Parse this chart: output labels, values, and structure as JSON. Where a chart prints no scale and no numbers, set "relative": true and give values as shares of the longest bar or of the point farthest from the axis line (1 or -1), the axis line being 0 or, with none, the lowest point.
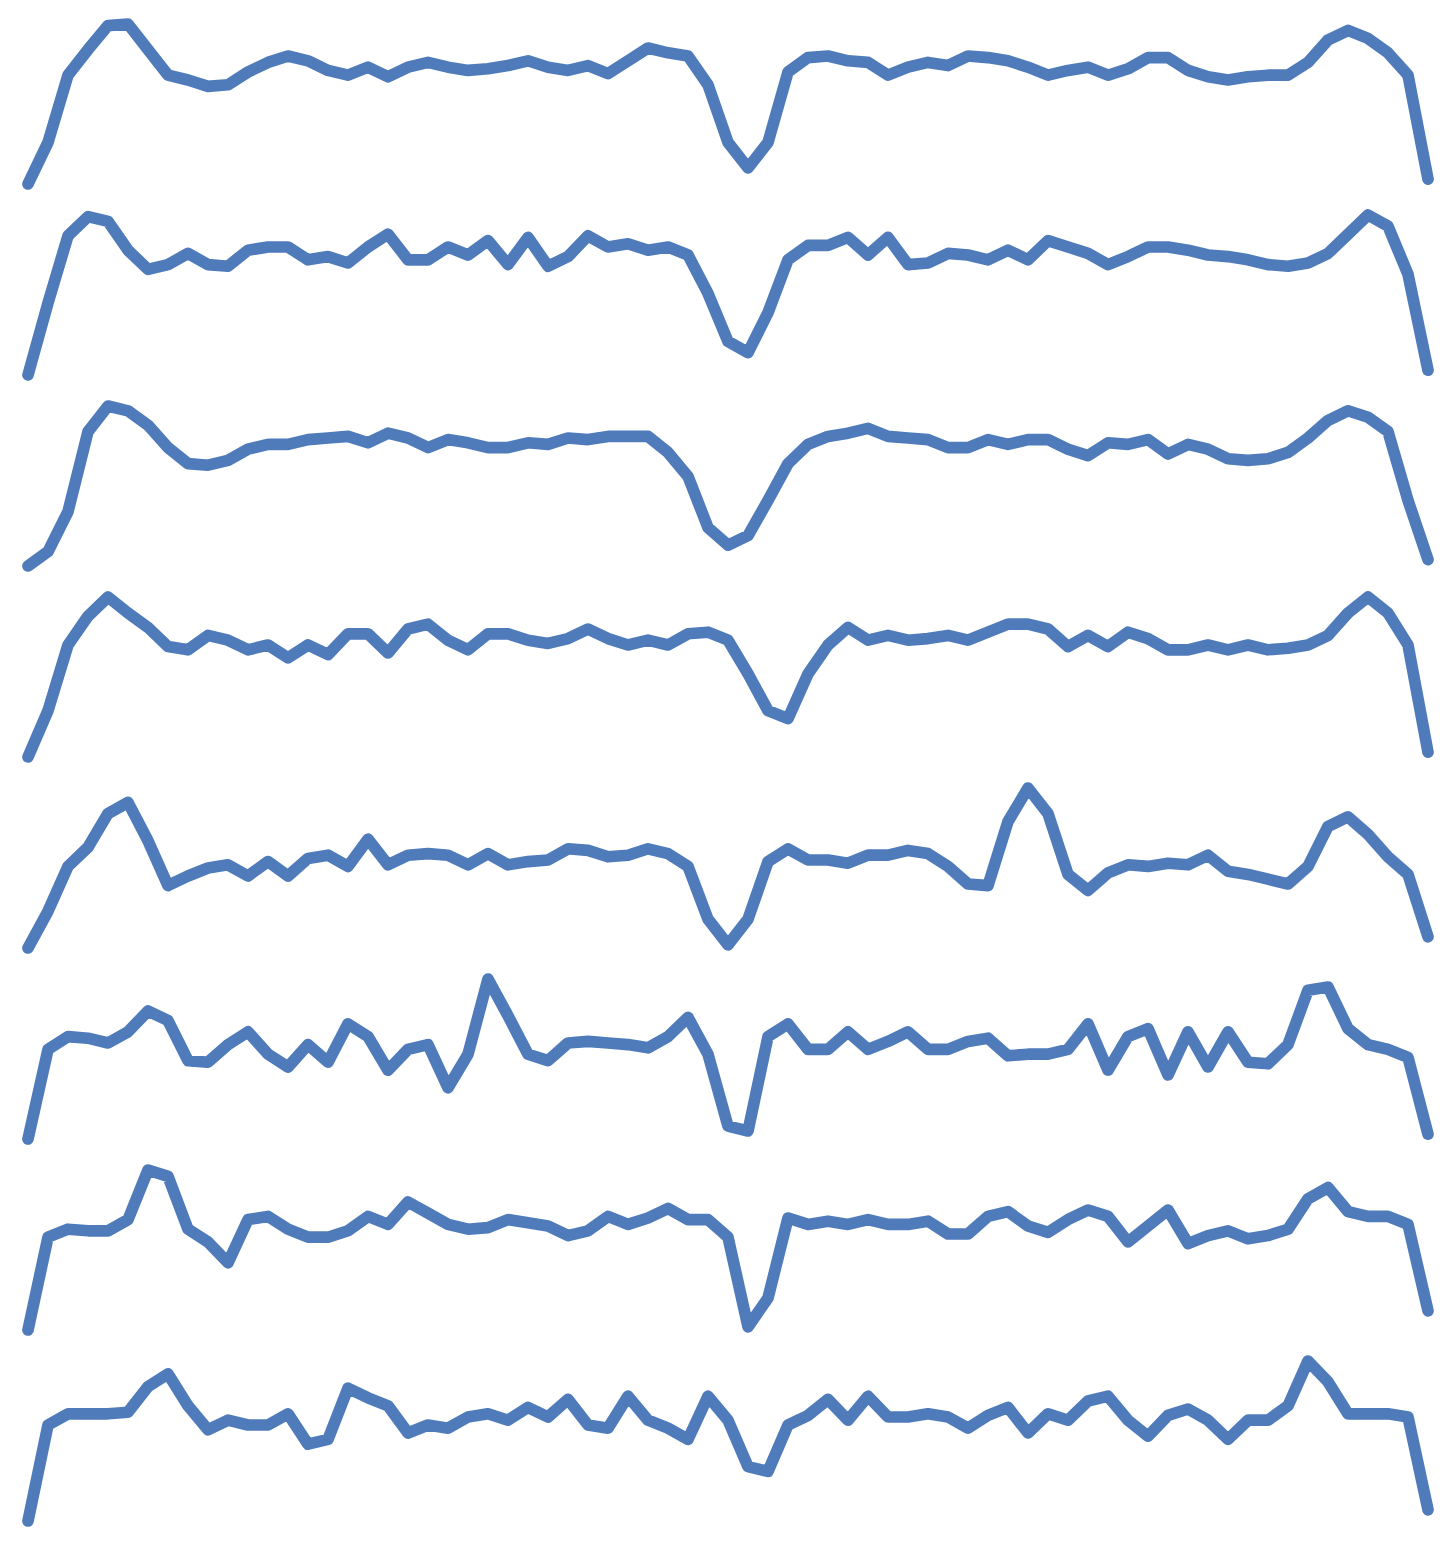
{
  "chart_data": [
    {
      "type": "line",
      "relative": true,
      "categories": [
        null,
        null,
        null,
        null,
        null,
        null,
        null,
        null,
        null,
        null,
        null,
        null,
        null,
        null,
        null,
        null,
        null,
        null,
        null,
        null,
        null,
        null,
        null,
        null,
        null,
        null,
        null,
        null,
        null,
        null,
        null,
        null,
        null,
        null,
        null,
        null,
        null,
        null,
        null,
        null,
        null,
        null,
        null,
        null,
        null,
        null,
        null,
        null,
        null,
        null,
        null,
        null,
        null,
        null,
        null,
        null,
        null,
        null,
        null,
        null,
        null,
        null,
        null,
        null,
        null,
        null,
        null,
        null,
        null,
        null,
        null
      ],
      "series": [
        {
          "color": "#4f7bbb",
          "values": [
            0,
            0.26,
            0.68,
            0.84,
            0.99,
            1.0,
            0.84,
            0.68,
            0.65,
            0.61,
            0.62,
            0.7,
            0.76,
            0.8,
            0.77,
            0.71,
            0.68,
            0.73,
            0.67,
            0.73,
            0.76,
            0.73,
            0.71,
            0.72,
            0.74,
            0.77,
            0.73,
            0.71,
            0.74,
            0.69,
            0.77,
            0.85,
            0.82,
            0.8,
            0.62,
            0.26,
            0.1,
            0.26,
            0.7,
            0.79,
            0.8,
            0.77,
            0.76,
            0.68,
            0.73,
            0.76,
            0.74,
            0.8,
            0.79,
            0.77,
            0.73,
            0.68,
            0.71,
            0.73,
            0.68,
            0.72,
            0.79,
            0.79,
            0.71,
            0.67,
            0.65,
            0.67,
            0.68,
            0.68,
            0.76,
            0.9,
            0.96,
            0.91,
            0.82,
            0.68,
            0.03
          ]
        }
      ]
    },
    {
      "type": "line",
      "relative": true,
      "categories": [
        null,
        null,
        null,
        null,
        null,
        null,
        null,
        null,
        null,
        null,
        null,
        null,
        null,
        null,
        null,
        null,
        null,
        null,
        null,
        null,
        null,
        null,
        null,
        null,
        null,
        null,
        null,
        null,
        null,
        null,
        null,
        null,
        null,
        null,
        null,
        null,
        null,
        null,
        null,
        null,
        null,
        null,
        null,
        null,
        null,
        null,
        null,
        null,
        null,
        null,
        null,
        null,
        null,
        null,
        null,
        null,
        null,
        null,
        null,
        null,
        null,
        null,
        null,
        null,
        null,
        null,
        null,
        null,
        null,
        null,
        null
      ],
      "series": [
        {
          "color": "#4f7bbb",
          "values": [
            0,
            0.45,
            0.87,
            0.99,
            0.96,
            0.78,
            0.66,
            0.69,
            0.76,
            0.69,
            0.68,
            0.78,
            0.8,
            0.8,
            0.72,
            0.74,
            0.7,
            0.8,
            0.88,
            0.72,
            0.72,
            0.8,
            0.75,
            0.84,
            0.69,
            0.86,
            0.68,
            0.74,
            0.87,
            0.8,
            0.82,
            0.78,
            0.8,
            0.75,
            0.51,
            0.21,
            0.14,
            0.39,
            0.72,
            0.81,
            0.81,
            0.86,
            0.75,
            0.86,
            0.69,
            0.7,
            0.76,
            0.75,
            0.72,
            0.78,
            0.72,
            0.84,
            0.8,
            0.76,
            0.69,
            0.74,
            0.8,
            0.8,
            0.78,
            0.75,
            0.74,
            0.72,
            0.69,
            0.68,
            0.7,
            0.76,
            0.88,
            1.0,
            0.93,
            0.63,
            0.03
          ]
        }
      ]
    },
    {
      "type": "line",
      "relative": true,
      "categories": [
        null,
        null,
        null,
        null,
        null,
        null,
        null,
        null,
        null,
        null,
        null,
        null,
        null,
        null,
        null,
        null,
        null,
        null,
        null,
        null,
        null,
        null,
        null,
        null,
        null,
        null,
        null,
        null,
        null,
        null,
        null,
        null,
        null,
        null,
        null,
        null,
        null,
        null,
        null,
        null,
        null,
        null,
        null,
        null,
        null,
        null,
        null,
        null,
        null,
        null,
        null,
        null,
        null,
        null,
        null,
        null,
        null,
        null,
        null,
        null,
        null,
        null,
        null,
        null,
        null,
        null,
        null,
        null,
        null,
        null,
        null
      ],
      "series": [
        {
          "color": "#4f7bbb",
          "values": [
            0,
            0.09,
            0.34,
            0.84,
            1.0,
            0.97,
            0.88,
            0.74,
            0.64,
            0.63,
            0.66,
            0.73,
            0.76,
            0.76,
            0.79,
            0.8,
            0.81,
            0.77,
            0.83,
            0.8,
            0.74,
            0.79,
            0.77,
            0.74,
            0.74,
            0.77,
            0.76,
            0.8,
            0.79,
            0.81,
            0.81,
            0.81,
            0.71,
            0.56,
            0.24,
            0.13,
            0.19,
            0.41,
            0.64,
            0.76,
            0.81,
            0.83,
            0.86,
            0.81,
            0.8,
            0.79,
            0.74,
            0.74,
            0.79,
            0.76,
            0.79,
            0.79,
            0.73,
            0.69,
            0.77,
            0.76,
            0.79,
            0.7,
            0.76,
            0.73,
            0.67,
            0.66,
            0.67,
            0.71,
            0.8,
            0.91,
            0.97,
            0.93,
            0.84,
            0.41,
            0.04
          ]
        }
      ]
    },
    {
      "type": "line",
      "relative": true,
      "categories": [
        null,
        null,
        null,
        null,
        null,
        null,
        null,
        null,
        null,
        null,
        null,
        null,
        null,
        null,
        null,
        null,
        null,
        null,
        null,
        null,
        null,
        null,
        null,
        null,
        null,
        null,
        null,
        null,
        null,
        null,
        null,
        null,
        null,
        null,
        null,
        null,
        null,
        null,
        null,
        null,
        null,
        null,
        null,
        null,
        null,
        null,
        null,
        null,
        null,
        null,
        null,
        null,
        null,
        null,
        null,
        null,
        null,
        null,
        null,
        null,
        null,
        null,
        null,
        null,
        null,
        null,
        null,
        null,
        null,
        null,
        null
      ],
      "series": [
        {
          "color": "#4f7bbb",
          "values": [
            0,
            0.29,
            0.7,
            0.88,
            1.0,
            0.9,
            0.81,
            0.69,
            0.67,
            0.76,
            0.73,
            0.67,
            0.7,
            0.62,
            0.7,
            0.64,
            0.77,
            0.77,
            0.65,
            0.8,
            0.83,
            0.73,
            0.67,
            0.77,
            0.77,
            0.73,
            0.71,
            0.74,
            0.8,
            0.74,
            0.7,
            0.73,
            0.7,
            0.77,
            0.78,
            0.73,
            0.52,
            0.29,
            0.24,
            0.52,
            0.7,
            0.81,
            0.73,
            0.76,
            0.73,
            0.74,
            0.76,
            0.73,
            0.78,
            0.83,
            0.83,
            0.8,
            0.69,
            0.76,
            0.69,
            0.78,
            0.74,
            0.67,
            0.67,
            0.7,
            0.67,
            0.7,
            0.67,
            0.68,
            0.7,
            0.76,
            0.9,
            1.0,
            0.9,
            0.7,
            0.03
          ]
        }
      ]
    },
    {
      "type": "line",
      "relative": true,
      "categories": [
        null,
        null,
        null,
        null,
        null,
        null,
        null,
        null,
        null,
        null,
        null,
        null,
        null,
        null,
        null,
        null,
        null,
        null,
        null,
        null,
        null,
        null,
        null,
        null,
        null,
        null,
        null,
        null,
        null,
        null,
        null,
        null,
        null,
        null,
        null,
        null,
        null,
        null,
        null,
        null,
        null,
        null,
        null,
        null,
        null,
        null,
        null,
        null,
        null,
        null,
        null,
        null,
        null,
        null,
        null,
        null,
        null,
        null,
        null,
        null,
        null,
        null,
        null,
        null,
        null,
        null,
        null,
        null,
        null,
        null,
        null
      ],
      "series": [
        {
          "color": "#4f7bbb",
          "values": [
            0,
            0.23,
            0.51,
            0.63,
            0.84,
            0.91,
            0.67,
            0.39,
            0.45,
            0.5,
            0.52,
            0.45,
            0.54,
            0.45,
            0.56,
            0.58,
            0.51,
            0.68,
            0.52,
            0.58,
            0.59,
            0.58,
            0.52,
            0.59,
            0.52,
            0.54,
            0.55,
            0.62,
            0.61,
            0.57,
            0.58,
            0.62,
            0.59,
            0.51,
            0.18,
            0.02,
            0.18,
            0.54,
            0.62,
            0.55,
            0.55,
            0.53,
            0.58,
            0.58,
            0.61,
            0.59,
            0.51,
            0.4,
            0.39,
            0.79,
            1.0,
            0.84,
            0.46,
            0.36,
            0.47,
            0.52,
            0.51,
            0.53,
            0.52,
            0.58,
            0.48,
            0.46,
            0.43,
            0.4,
            0.51,
            0.76,
            0.82,
            0.71,
            0.57,
            0.46,
            0.07
          ]
        }
      ]
    },
    {
      "type": "line",
      "relative": true,
      "categories": [
        null,
        null,
        null,
        null,
        null,
        null,
        null,
        null,
        null,
        null,
        null,
        null,
        null,
        null,
        null,
        null,
        null,
        null,
        null,
        null,
        null,
        null,
        null,
        null,
        null,
        null,
        null,
        null,
        null,
        null,
        null,
        null,
        null,
        null,
        null,
        null,
        null,
        null,
        null,
        null,
        null,
        null,
        null,
        null,
        null,
        null,
        null,
        null,
        null,
        null,
        null,
        null,
        null,
        null,
        null,
        null,
        null,
        null,
        null,
        null,
        null,
        null,
        null,
        null,
        null,
        null,
        null,
        null,
        null,
        null,
        null
      ],
      "series": [
        {
          "color": "#4f7bbb",
          "values": [
            0,
            0.56,
            0.64,
            0.63,
            0.6,
            0.67,
            0.8,
            0.74,
            0.49,
            0.48,
            0.59,
            0.67,
            0.53,
            0.45,
            0.59,
            0.48,
            0.72,
            0.64,
            0.43,
            0.56,
            0.59,
            0.32,
            0.53,
            1.0,
            0.77,
            0.53,
            0.49,
            0.6,
            0.61,
            0.6,
            0.59,
            0.57,
            0.64,
            0.76,
            0.53,
            0.08,
            0.05,
            0.64,
            0.72,
            0.56,
            0.56,
            0.67,
            0.56,
            0.61,
            0.67,
            0.56,
            0.56,
            0.61,
            0.63,
            0.52,
            0.53,
            0.53,
            0.56,
            0.72,
            0.43,
            0.64,
            0.69,
            0.4,
            0.67,
            0.45,
            0.67,
            0.48,
            0.47,
            0.59,
            0.93,
            0.95,
            0.69,
            0.59,
            0.56,
            0.51,
            0.03
          ]
        }
      ]
    },
    {
      "type": "line",
      "relative": true,
      "categories": [
        null,
        null,
        null,
        null,
        null,
        null,
        null,
        null,
        null,
        null,
        null,
        null,
        null,
        null,
        null,
        null,
        null,
        null,
        null,
        null,
        null,
        null,
        null,
        null,
        null,
        null,
        null,
        null,
        null,
        null,
        null,
        null,
        null,
        null,
        null,
        null,
        null,
        null,
        null,
        null,
        null,
        null,
        null,
        null,
        null,
        null,
        null,
        null,
        null,
        null,
        null,
        null,
        null,
        null,
        null,
        null,
        null,
        null,
        null,
        null,
        null,
        null,
        null,
        null,
        null,
        null,
        null,
        null,
        null,
        null,
        null
      ],
      "series": [
        {
          "color": "#4f7bbb",
          "values": [
            0,
            0.58,
            0.63,
            0.62,
            0.62,
            0.69,
            1.0,
            0.96,
            0.63,
            0.55,
            0.42,
            0.69,
            0.71,
            0.63,
            0.58,
            0.58,
            0.62,
            0.71,
            0.66,
            0.8,
            0.73,
            0.66,
            0.63,
            0.64,
            0.69,
            0.67,
            0.65,
            0.59,
            0.62,
            0.71,
            0.66,
            0.7,
            0.76,
            0.69,
            0.69,
            0.58,
            0.02,
            0.2,
            0.7,
            0.66,
            0.68,
            0.66,
            0.69,
            0.66,
            0.66,
            0.68,
            0.6,
            0.6,
            0.71,
            0.74,
            0.65,
            0.61,
            0.69,
            0.75,
            0.71,
            0.55,
            0.65,
            0.75,
            0.54,
            0.59,
            0.62,
            0.57,
            0.59,
            0.63,
            0.82,
            0.89,
            0.74,
            0.71,
            0.71,
            0.66,
            0.12
          ]
        }
      ]
    },
    {
      "type": "line",
      "relative": true,
      "categories": [
        null,
        null,
        null,
        null,
        null,
        null,
        null,
        null,
        null,
        null,
        null,
        null,
        null,
        null,
        null,
        null,
        null,
        null,
        null,
        null,
        null,
        null,
        null,
        null,
        null,
        null,
        null,
        null,
        null,
        null,
        null,
        null,
        null,
        null,
        null,
        null,
        null,
        null,
        null,
        null,
        null,
        null,
        null,
        null,
        null,
        null,
        null,
        null,
        null,
        null,
        null,
        null,
        null,
        null,
        null,
        null,
        null,
        null,
        null,
        null,
        null,
        null,
        null,
        null,
        null,
        null,
        null,
        null,
        null,
        null,
        null
      ],
      "series": [
        {
          "color": "#4f7bbb",
          "values": [
            0,
            0.6,
            0.67,
            0.67,
            0.67,
            0.68,
            0.84,
            0.92,
            0.72,
            0.57,
            0.63,
            0.6,
            0.6,
            0.67,
            0.48,
            0.51,
            0.83,
            0.77,
            0.72,
            0.55,
            0.6,
            0.58,
            0.65,
            0.67,
            0.63,
            0.71,
            0.65,
            0.76,
            0.6,
            0.58,
            0.78,
            0.63,
            0.58,
            0.51,
            0.78,
            0.63,
            0.34,
            0.31,
            0.6,
            0.66,
            0.76,
            0.63,
            0.78,
            0.65,
            0.65,
            0.67,
            0.65,
            0.58,
            0.66,
            0.71,
            0.55,
            0.67,
            0.63,
            0.75,
            0.78,
            0.63,
            0.53,
            0.66,
            0.7,
            0.63,
            0.51,
            0.63,
            0.63,
            0.72,
            1.0,
            0.87,
            0.67,
            0.67,
            0.67,
            0.65,
            0.07
          ]
        }
      ]
    }
  ]
}
